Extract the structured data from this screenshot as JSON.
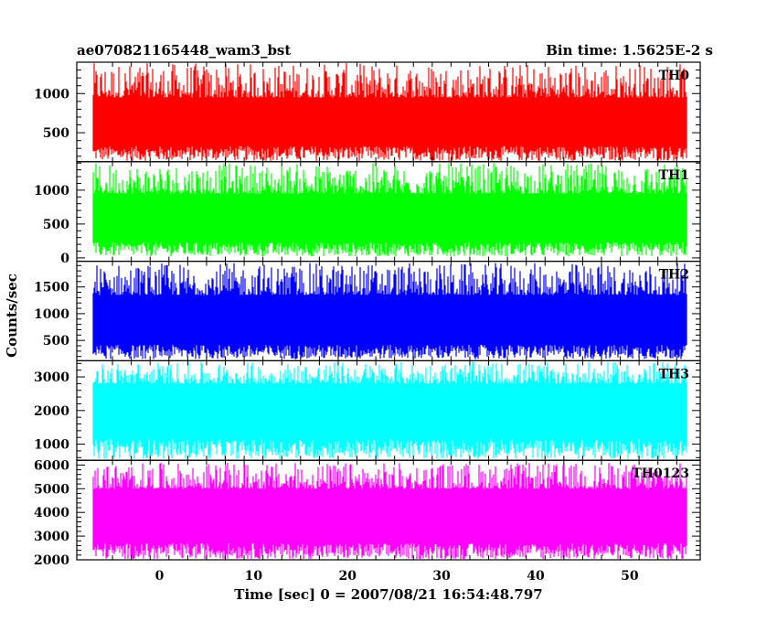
{
  "chart_data": {
    "type": "line",
    "title_left": "ae070821165448_wam3_bst",
    "title_right": "Bin time: 1.5625E-2 s",
    "xlabel": "Time [sec] 0 = 2007/08/21 16:54:48.797",
    "ylabel": "Counts/sec",
    "x_ticks": [
      "0",
      "10",
      "20",
      "30",
      "40",
      "50"
    ],
    "xlim": [
      -8.8,
      57.5
    ],
    "data_range": [
      -7.0,
      56.0
    ],
    "grid": false,
    "series": [
      {
        "name": "TH0",
        "color": "#ff0000",
        "ylim": [
          130,
          1400
        ],
        "y_ticks": [
          "500",
          "1000"
        ],
        "mean": 600,
        "low_range": [
          140,
          330
        ],
        "high_range": [
          950,
          1390
        ]
      },
      {
        "name": "TH1",
        "color": "#00ff00",
        "ylim": [
          -50,
          1420
        ],
        "y_ticks": [
          "0",
          "500",
          "1000"
        ],
        "mean": 560,
        "low_range": [
          20,
          230
        ],
        "high_range": [
          950,
          1400
        ]
      },
      {
        "name": "TH2",
        "color": "#0000ff",
        "ylim": [
          120,
          1980
        ],
        "y_ticks": [
          "500",
          "1000",
          "1500"
        ],
        "mean": 830,
        "low_range": [
          150,
          420
        ],
        "high_range": [
          1350,
          1950
        ]
      },
      {
        "name": "TH3",
        "color": "#00ffff",
        "ylim": [
          520,
          3480
        ],
        "y_ticks": [
          "1000",
          "2000",
          "3000"
        ],
        "mean": 1850,
        "low_range": [
          560,
          1150
        ],
        "high_range": [
          2800,
          3450
        ]
      },
      {
        "name": "TH0123",
        "color": "#ff00ff",
        "ylim": [
          2000,
          6200
        ],
        "y_ticks": [
          "2000",
          "3000",
          "4000",
          "5000",
          "6000"
        ],
        "mean": 3800,
        "low_range": [
          2020,
          2700
        ],
        "high_range": [
          5000,
          6100
        ]
      }
    ]
  }
}
